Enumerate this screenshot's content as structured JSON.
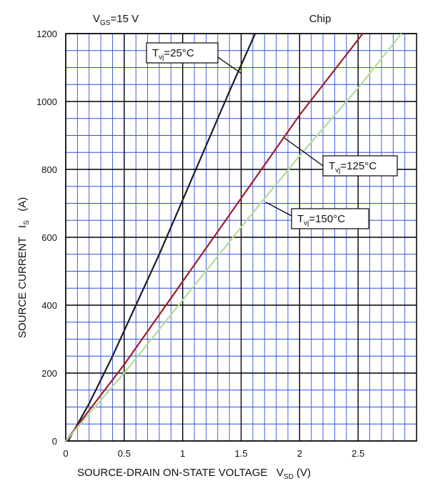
{
  "chart_data": {
    "type": "line",
    "header_left": {
      "main": "V",
      "sub": "GS",
      "rest": "=15 V"
    },
    "header_right": "Chip",
    "x_label": {
      "main": "SOURCE-DRAIN ON-STATE VOLTAGE   V",
      "sub": "SD",
      "rest": " (V)"
    },
    "y_label": {
      "main": "SOURCE CURRENT   I",
      "sub": "S",
      "rest": "   (A)"
    },
    "xlim": [
      0,
      3
    ],
    "xticks": [
      0,
      0.5,
      1,
      1.5,
      2,
      2.5
    ],
    "ylim": [
      0,
      1200
    ],
    "yticks": [
      0,
      200,
      400,
      600,
      800,
      1000,
      1200
    ],
    "grid": true,
    "grid_minor_step": {
      "x": 0.1,
      "y": 50
    },
    "series": [
      {
        "name": {
          "main": "T",
          "sub": "vj",
          "rest": "=25°C"
        },
        "color": "#1c1c2c",
        "x": [
          0.02,
          0.2,
          0.4,
          0.6,
          0.8,
          1.0,
          1.2,
          1.4,
          1.62
        ],
        "values": [
          0,
          110,
          250,
          400,
          550,
          710,
          870,
          1030,
          1200
        ]
      },
      {
        "name": {
          "main": "T",
          "sub": "vj",
          "rest": "=125°C"
        },
        "color": "#a01c2c",
        "x": [
          0.0,
          0.5,
          1.0,
          1.5,
          2.0,
          2.54
        ],
        "values": [
          0,
          225,
          470,
          715,
          960,
          1200
        ]
      },
      {
        "name": {
          "main": "T",
          "sub": "vj",
          "rest": "=150°C"
        },
        "color": "#b3dc98",
        "x": [
          0.0,
          0.5,
          1.0,
          1.5,
          2.0,
          2.5,
          2.87
        ],
        "values": [
          0,
          200,
          415,
          630,
          840,
          1040,
          1200
        ]
      }
    ]
  }
}
